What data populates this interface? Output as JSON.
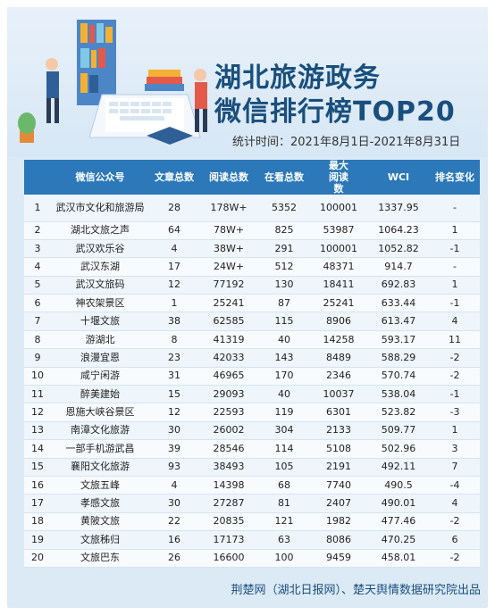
{
  "header": {
    "title_line1": "湖北旅游政务",
    "title_line2": "微信排行榜TOP20",
    "stat_time": "统计时间：2021年8月1日-2021年8月31日"
  },
  "table": {
    "columns": [
      "",
      "微信公众号",
      "文章总数",
      "阅读总数",
      "在看总数",
      "最大阅读数",
      "WCI",
      "排名变化"
    ],
    "rows": [
      [
        "1",
        "武汉市文化和旅游局",
        "28",
        "178W+",
        "5352",
        "100001",
        "1337.95",
        "-"
      ],
      [
        "2",
        "湖北文旅之声",
        "64",
        "78W+",
        "825",
        "53987",
        "1064.23",
        "1"
      ],
      [
        "3",
        "武汉欢乐谷",
        "4",
        "38W+",
        "291",
        "100001",
        "1052.82",
        "-1"
      ],
      [
        "4",
        "武汉东湖",
        "17",
        "24W+",
        "512",
        "48371",
        "914.7",
        "-"
      ],
      [
        "5",
        "武汉文旅码",
        "12",
        "77192",
        "130",
        "18411",
        "692.83",
        "1"
      ],
      [
        "6",
        "神农架景区",
        "1",
        "25241",
        "87",
        "25241",
        "633.44",
        "-1"
      ],
      [
        "7",
        "十堰文旅",
        "38",
        "62585",
        "115",
        "8906",
        "613.47",
        "4"
      ],
      [
        "8",
        "游湖北",
        "8",
        "41319",
        "40",
        "14258",
        "593.17",
        "11"
      ],
      [
        "9",
        "浪漫宜恩",
        "23",
        "42033",
        "143",
        "8489",
        "588.29",
        "-2"
      ],
      [
        "10",
        "咸宁闲游",
        "31",
        "46965",
        "170",
        "2346",
        "570.74",
        "-2"
      ],
      [
        "11",
        "醉美建始",
        "15",
        "29093",
        "40",
        "10037",
        "538.04",
        "-1"
      ],
      [
        "12",
        "恩施大峡谷景区",
        "12",
        "22593",
        "119",
        "6301",
        "523.82",
        "-3"
      ],
      [
        "13",
        "南漳文化旅游",
        "30",
        "26002",
        "304",
        "2133",
        "509.77",
        "1"
      ],
      [
        "14",
        "一部手机游武昌",
        "39",
        "28546",
        "114",
        "5108",
        "502.96",
        "3"
      ],
      [
        "15",
        "襄阳文化旅游",
        "93",
        "38493",
        "105",
        "2191",
        "492.11",
        "7"
      ],
      [
        "16",
        "文旅五峰",
        "4",
        "14398",
        "68",
        "7740",
        "490.5",
        "-4"
      ],
      [
        "17",
        "孝感文旅",
        "30",
        "27287",
        "81",
        "2407",
        "490.01",
        "4"
      ],
      [
        "18",
        "黄陂文旅",
        "22",
        "20835",
        "121",
        "1982",
        "477.46",
        "-2"
      ],
      [
        "19",
        "文旅秭归",
        "16",
        "17173",
        "63",
        "8086",
        "470.25",
        "6"
      ],
      [
        "20",
        "文旅巴东",
        "26",
        "16600",
        "100",
        "9459",
        "458.01",
        "-2"
      ]
    ]
  },
  "footer": {
    "source": "荆楚网（湖北日报网）、楚天舆情数据研究院出品"
  },
  "colors": {
    "header_bg": "#2c78b8",
    "title": "#1a4f7d",
    "panel": "#dceaf6"
  }
}
